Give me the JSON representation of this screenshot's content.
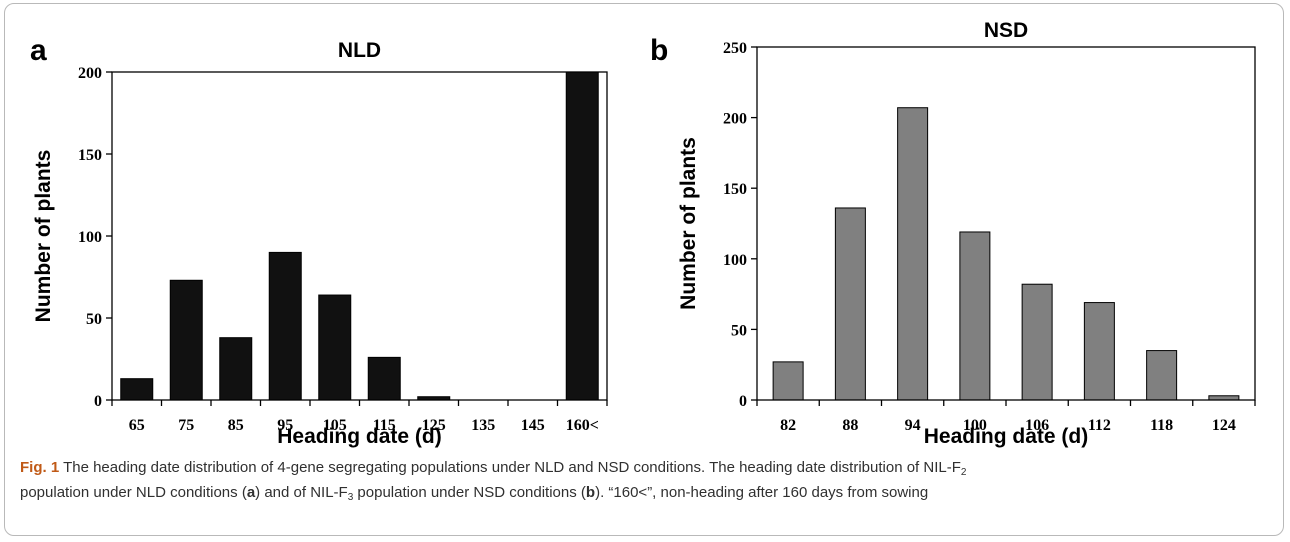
{
  "chart_data": [
    {
      "type": "bar",
      "panel_label": "a",
      "title": "NLD",
      "xlabel": "Heading date (d)",
      "ylabel": "Number of plants",
      "categories": [
        "65",
        "75",
        "85",
        "95",
        "105",
        "115",
        "125",
        "135",
        "145",
        "160<"
      ],
      "values": [
        13,
        73,
        38,
        90,
        64,
        26,
        2,
        0,
        0,
        200
      ],
      "ylim": [
        0,
        200
      ],
      "yticks": [
        0,
        50,
        100,
        150,
        200
      ],
      "bar_color": "#111111",
      "grid": false
    },
    {
      "type": "bar",
      "panel_label": "b",
      "title": "NSD",
      "xlabel": "Heading date (d)",
      "ylabel": "Number of plants",
      "categories": [
        "82",
        "88",
        "94",
        "100",
        "106",
        "112",
        "118",
        "124"
      ],
      "values": [
        27,
        136,
        207,
        119,
        82,
        69,
        35,
        3
      ],
      "ylim": [
        0,
        250
      ],
      "yticks": [
        0,
        50,
        100,
        150,
        200,
        250
      ],
      "bar_color": "#808080",
      "grid": false
    }
  ],
  "caption": {
    "fig_label": "Fig. 1",
    "line1": "The heading date distribution of 4-gene segregating populations under NLD and NSD conditions. The heading date distribution of NIL-F",
    "line1_sub": "2",
    "line2_a": "population under NLD conditions (",
    "ref_a": "a",
    "line2_b": ") and of NIL-F",
    "line2_sub": "3",
    "line2_c": " population under NSD conditions (",
    "ref_b": "b",
    "line2_d": "). “160<”, non-heading after 160 days from sowing"
  }
}
